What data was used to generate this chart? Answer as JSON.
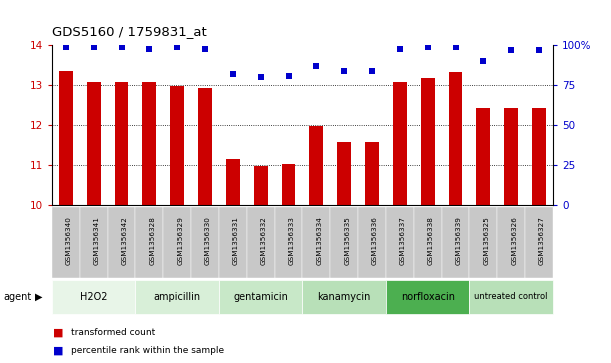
{
  "title": "GDS5160 / 1759831_at",
  "samples": [
    "GSM1356340",
    "GSM1356341",
    "GSM1356342",
    "GSM1356328",
    "GSM1356329",
    "GSM1356330",
    "GSM1356331",
    "GSM1356332",
    "GSM1356333",
    "GSM1356334",
    "GSM1356335",
    "GSM1356336",
    "GSM1356337",
    "GSM1356338",
    "GSM1356339",
    "GSM1356325",
    "GSM1356326",
    "GSM1356327"
  ],
  "bar_values": [
    13.35,
    13.08,
    13.08,
    13.08,
    12.98,
    12.92,
    11.15,
    10.97,
    11.02,
    11.98,
    11.58,
    11.57,
    13.08,
    13.18,
    13.33,
    12.42,
    12.42,
    12.42
  ],
  "percentile_values": [
    99,
    99,
    99,
    98,
    99,
    98,
    82,
    80,
    81,
    87,
    84,
    84,
    98,
    99,
    99,
    90,
    97,
    97
  ],
  "ylim_left": [
    10,
    14
  ],
  "ylim_right": [
    0,
    100
  ],
  "yticks_left": [
    10,
    11,
    12,
    13,
    14
  ],
  "yticks_right": [
    0,
    25,
    50,
    75,
    100
  ],
  "groups": [
    {
      "label": "H2O2",
      "start": 0,
      "end": 3,
      "color": "#e8f5e8"
    },
    {
      "label": "ampicillin",
      "start": 3,
      "end": 6,
      "color": "#d8efd8"
    },
    {
      "label": "gentamicin",
      "start": 6,
      "end": 9,
      "color": "#c8e8c8"
    },
    {
      "label": "kanamycin",
      "start": 9,
      "end": 12,
      "color": "#b8e0b8"
    },
    {
      "label": "norfloxacin",
      "start": 12,
      "end": 15,
      "color": "#4caf50"
    },
    {
      "label": "untreated control",
      "start": 15,
      "end": 18,
      "color": "#b8e0b8"
    }
  ],
  "bar_color": "#cc0000",
  "dot_color": "#0000cc",
  "bar_width": 0.5,
  "axis_color_left": "#cc0000",
  "axis_color_right": "#0000cc",
  "sample_row_color": "#c8c8c8",
  "agent_label": "agent"
}
